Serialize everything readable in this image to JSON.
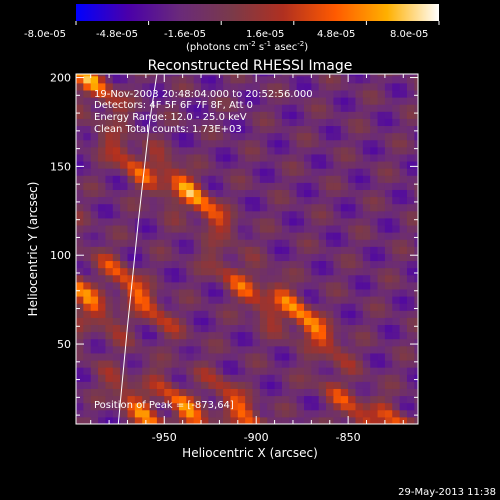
{
  "colors": {
    "background": "#000000",
    "text": "#ffffff",
    "limb": "#ffffff"
  },
  "colorbar": {
    "ticks": [
      "-8.0e-05",
      "-4.8e-05",
      "-1.6e-05",
      "1.6e-05",
      "4.8e-05",
      "8.0e-05"
    ],
    "unit_main": "(photons cm",
    "unit_sup1": "-2",
    "unit_mid1": " s",
    "unit_sup2": "-1",
    "unit_mid2": " asec",
    "unit_sup3": "-2",
    "unit_end": ")",
    "colormap": [
      "#0000ff",
      "#4a00aa",
      "#6a2a7a",
      "#7a3a4a",
      "#b03020",
      "#ff5a00",
      "#ffb000",
      "#ffffff"
    ]
  },
  "annotations": {
    "time": "19-Nov-2003 20:48:04.000 to 20:52:56.000",
    "detectors": "Detectors: 4F 5F 6F 7F 8F, Att 0",
    "energy": "Energy Range: 12.0 - 25.0 keV",
    "clean": "Clean     Total counts: 1.73E+03",
    "peak": "Position of Peak = [-873,64]"
  },
  "footer": {
    "date": "29-May-2013 11:38"
  },
  "chart_data": {
    "type": "heatmap",
    "title": "Reconstructed RHESSI Image",
    "xlabel": "Heliocentric X (arcsec)",
    "ylabel": "Heliocentric Y (arcsec)",
    "xlim": [
      -998,
      -812
    ],
    "ylim": [
      5,
      202
    ],
    "xticks": [
      {
        "value": -950,
        "label": "-950"
      },
      {
        "value": -900,
        "label": "-900"
      },
      {
        "value": -850,
        "label": "-850"
      }
    ],
    "yticks": [
      {
        "value": 50,
        "label": "50"
      },
      {
        "value": 100,
        "label": "100"
      },
      {
        "value": 150,
        "label": "150"
      },
      {
        "value": 200,
        "label": "200"
      }
    ],
    "zlim": [
      -8e-05,
      8e-05
    ],
    "peak": {
      "x": -873,
      "y": 64
    },
    "limb": [
      [
        -975,
        5
      ],
      [
        -970,
        60
      ],
      [
        -964,
        120
      ],
      [
        -958,
        175
      ],
      [
        -954,
        202
      ]
    ],
    "ridges": [
      {
        "x0": -960,
        "y0": 10,
        "slope": -1.15,
        "amp": 7e-05
      },
      {
        "x0": -935,
        "y0": 10,
        "slope": -1.15,
        "amp": 7.5e-05
      },
      {
        "x0": -905,
        "y0": 10,
        "slope": -1.15,
        "amp": 7e-05
      },
      {
        "x0": -873,
        "y0": 64,
        "slope": -1.15,
        "amp": 8e-05
      },
      {
        "x0": -845,
        "y0": 10,
        "slope": -1.15,
        "amp": 5.5e-05
      }
    ]
  }
}
